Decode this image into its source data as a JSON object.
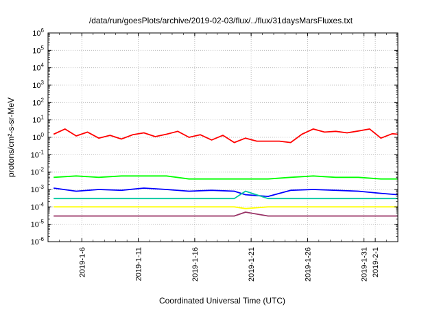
{
  "chart_data": {
    "type": "line",
    "title": "/data/run/goesPlots/archive/2019-02-03/flux/../flux/31daysMarsFluxes.txt",
    "xlabel": "Coordinated Universal Time (UTC)",
    "ylabel": "protons/cm²-s-sr-MeV",
    "yscale": "log",
    "ylim": [
      1e-06,
      1000000.0
    ],
    "xlim": [
      "2019-01-03",
      "2019-02-03"
    ],
    "grid": true,
    "x_ticks": [
      "2019-1-6",
      "2019-1-11",
      "2019-1-16",
      "2019-1-21",
      "2019-1-26",
      "2019-1-31",
      "2019-2-1"
    ],
    "y_ticks": [
      "10-6",
      "10-5",
      "10-4",
      "10-3",
      "10-2",
      "10-1",
      "100",
      "101",
      "102",
      "103",
      "104",
      "105",
      "106"
    ],
    "series": [
      {
        "color": "#ff0000",
        "x": [
          "2019-01-03",
          "2019-01-04",
          "2019-01-05",
          "2019-01-06",
          "2019-01-07",
          "2019-01-08",
          "2019-01-09",
          "2019-01-10",
          "2019-01-11",
          "2019-01-12",
          "2019-01-13",
          "2019-01-14",
          "2019-01-15",
          "2019-01-16",
          "2019-01-17",
          "2019-01-18",
          "2019-01-19",
          "2019-01-20",
          "2019-01-21",
          "2019-01-22",
          "2019-01-23",
          "2019-01-24",
          "2019-01-25",
          "2019-01-26",
          "2019-01-27",
          "2019-01-28",
          "2019-01-29",
          "2019-01-30",
          "2019-01-31",
          "2019-02-01",
          "2019-02-02",
          "2019-02-03"
        ],
        "values": [
          1.5,
          3.0,
          1.2,
          2.0,
          0.9,
          1.3,
          0.8,
          1.4,
          1.8,
          1.1,
          1.5,
          2.2,
          1.0,
          1.4,
          0.7,
          1.3,
          0.5,
          0.9,
          0.6,
          0.6,
          0.6,
          0.5,
          1.5,
          3.0,
          2.0,
          2.2,
          1.8,
          2.3,
          3.0,
          0.9,
          1.6,
          1.5
        ]
      },
      {
        "color": "#00ff00",
        "x": [
          "2019-01-03",
          "2019-01-05",
          "2019-01-07",
          "2019-01-09",
          "2019-01-11",
          "2019-01-13",
          "2019-01-15",
          "2019-01-17",
          "2019-01-19",
          "2019-01-20",
          "2019-01-22",
          "2019-01-24",
          "2019-01-26",
          "2019-01-28",
          "2019-01-30",
          "2019-02-01",
          "2019-02-03"
        ],
        "values": [
          0.005,
          0.006,
          0.005,
          0.006,
          0.006,
          0.006,
          0.004,
          0.004,
          0.004,
          0.004,
          0.004,
          0.005,
          0.006,
          0.005,
          0.005,
          0.004,
          0.004
        ]
      },
      {
        "color": "#0000ff",
        "x": [
          "2019-01-03",
          "2019-01-05",
          "2019-01-07",
          "2019-01-09",
          "2019-01-11",
          "2019-01-13",
          "2019-01-15",
          "2019-01-17",
          "2019-01-19",
          "2019-01-20",
          "2019-01-22",
          "2019-01-24",
          "2019-01-26",
          "2019-01-28",
          "2019-01-30",
          "2019-02-01",
          "2019-02-03"
        ],
        "values": [
          0.0012,
          0.0008,
          0.001,
          0.0009,
          0.0012,
          0.001,
          0.0008,
          0.0009,
          0.0008,
          0.0005,
          0.0004,
          0.0009,
          0.001,
          0.0009,
          0.0008,
          0.0006,
          0.0005
        ]
      },
      {
        "color": "#00c8a0",
        "x": [
          "2019-01-03",
          "2019-01-05",
          "2019-01-07",
          "2019-01-09",
          "2019-01-11",
          "2019-01-13",
          "2019-01-15",
          "2019-01-17",
          "2019-01-19",
          "2019-01-20",
          "2019-01-22",
          "2019-01-24",
          "2019-01-26",
          "2019-01-28",
          "2019-01-30",
          "2019-02-01",
          "2019-02-03"
        ],
        "values": [
          0.0003,
          0.0003,
          0.0003,
          0.0003,
          0.0003,
          0.0003,
          0.0003,
          0.0003,
          0.0003,
          0.0008,
          0.0003,
          0.0003,
          0.0003,
          0.0003,
          0.0003,
          0.0003,
          0.0003
        ]
      },
      {
        "color": "#ffff00",
        "x": [
          "2019-01-03",
          "2019-01-05",
          "2019-01-07",
          "2019-01-09",
          "2019-01-11",
          "2019-01-13",
          "2019-01-15",
          "2019-01-17",
          "2019-01-19",
          "2019-01-20",
          "2019-01-22",
          "2019-01-24",
          "2019-01-26",
          "2019-01-28",
          "2019-01-30",
          "2019-02-01",
          "2019-02-03"
        ],
        "values": [
          0.0001,
          0.0001,
          0.0001,
          0.0001,
          0.0001,
          0.0001,
          0.0001,
          0.0001,
          0.0001,
          8e-05,
          0.0001,
          0.0001,
          0.0001,
          0.0001,
          0.0001,
          0.0001,
          0.0001
        ]
      },
      {
        "color": "#993366",
        "x": [
          "2019-01-03",
          "2019-01-05",
          "2019-01-07",
          "2019-01-09",
          "2019-01-11",
          "2019-01-13",
          "2019-01-15",
          "2019-01-17",
          "2019-01-19",
          "2019-01-20",
          "2019-01-22",
          "2019-01-24",
          "2019-01-26",
          "2019-01-28",
          "2019-01-30",
          "2019-02-01",
          "2019-02-03"
        ],
        "values": [
          3e-05,
          3e-05,
          3e-05,
          3e-05,
          3e-05,
          3e-05,
          3e-05,
          3e-05,
          3e-05,
          5e-05,
          3e-05,
          3e-05,
          3e-05,
          3e-05,
          3e-05,
          3e-05,
          3e-05
        ]
      }
    ]
  }
}
